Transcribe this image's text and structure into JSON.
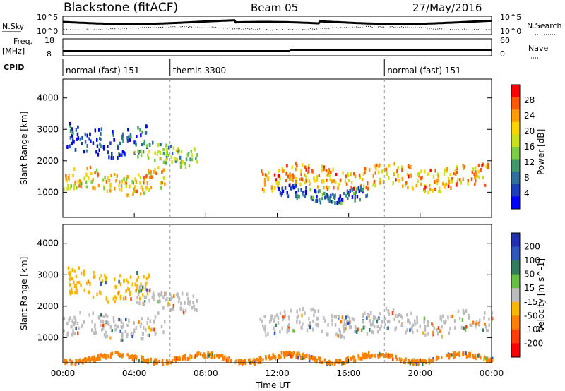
{
  "header": {
    "radar": "Blackstone (fitACF)",
    "beam": "Beam 05",
    "date": "27/May/2016"
  },
  "top_panels": {
    "nsky_label": "N.Sky",
    "nsky_ticks": [
      "10^5",
      "10^0"
    ],
    "nsearch_label": "N.Search",
    "nsearch_ticks": [
      "10^5",
      "10^0"
    ],
    "freq_label": "Freq.",
    "freq_unit": "[MHz]",
    "freq_ticks": [
      "18",
      "8"
    ],
    "nave_label": "Nave",
    "nave_ticks": [
      "60",
      "0"
    ],
    "cpid_label": "CPID",
    "cpid_segments": [
      {
        "label": "normal (fast) 151",
        "start_hour": 0,
        "end_hour": 6
      },
      {
        "label": "themis 3300",
        "start_hour": 6,
        "end_hour": 18
      },
      {
        "label": "normal (fast) 151",
        "start_hour": 18,
        "end_hour": 24
      }
    ]
  },
  "x_axis": {
    "label": "Time UT",
    "ticks": [
      "00:00",
      "04:00",
      "08:00",
      "12:00",
      "16:00",
      "20:00",
      "00:00"
    ]
  },
  "power_colorbar": {
    "label": "Power [dB]",
    "ticks": [
      "28",
      "24",
      "20",
      "16",
      "12",
      "8",
      "4"
    ],
    "colors": [
      "#ff0000",
      "#ff5a00",
      "#ff9a00",
      "#ffd200",
      "#c8e020",
      "#7ccf3c",
      "#3f9c6a",
      "#2c6fa0",
      "#1a3fb8",
      "#0000ff"
    ]
  },
  "velocity_colorbar": {
    "label": "Velocity [m s^-1]",
    "ticks": [
      "200",
      "100",
      "50",
      "15",
      "-15",
      "-50",
      "-100",
      "-200"
    ],
    "colors": [
      "#2030b0",
      "#2d57c0",
      "#2f7d5a",
      "#64c040",
      "#bdbdbd",
      "#ffb400",
      "#ff8000",
      "#ff4000",
      "#ff0000"
    ]
  },
  "chart_data": [
    {
      "type": "heatmap",
      "title": "Power",
      "xlabel": "Time UT",
      "ylabel": "Slant Range [km]",
      "xlim_hours": [
        0,
        24
      ],
      "ylim": [
        200,
        4600
      ],
      "yticks": [
        1000,
        2000,
        3000,
        4000
      ],
      "colorbar_label": "Power [dB]",
      "colorbar_ticks": [
        4,
        8,
        12,
        16,
        20,
        24,
        28
      ],
      "echo_bands": [
        {
          "from_hour": 0.0,
          "to_hour": 5.7,
          "range_km": [
            1000,
            1700
          ],
          "approx_power_db": 20
        },
        {
          "from_hour": 0.2,
          "to_hour": 4.8,
          "range_km": [
            2200,
            3100
          ],
          "approx_power_db": 6
        },
        {
          "from_hour": 4.0,
          "to_hour": 7.5,
          "range_km": [
            1900,
            2500
          ],
          "approx_power_db": 14
        },
        {
          "from_hour": 11.0,
          "to_hour": 24.0,
          "range_km": [
            1100,
            1800
          ],
          "approx_power_db": 22
        },
        {
          "from_hour": 12.0,
          "to_hour": 17.0,
          "range_km": [
            700,
            1100
          ],
          "approx_power_db": 8
        }
      ]
    },
    {
      "type": "heatmap",
      "title": "Velocity",
      "xlabel": "Time UT",
      "ylabel": "Slant Range [km]",
      "xlim_hours": [
        0,
        24
      ],
      "ylim": [
        200,
        4600
      ],
      "yticks": [
        1000,
        2000,
        3000,
        4000
      ],
      "colorbar_label": "Velocity [m s^-1]",
      "colorbar_ticks": [
        -200,
        -100,
        -50,
        -15,
        15,
        50,
        100,
        200
      ],
      "echo_bands": [
        {
          "from_hour": 0.0,
          "to_hour": 5.7,
          "range_km": [
            1000,
            1700
          ],
          "approx_velocity": 0
        },
        {
          "from_hour": 0.2,
          "to_hour": 4.8,
          "range_km": [
            2200,
            3100
          ],
          "approx_velocity": -50
        },
        {
          "from_hour": 4.0,
          "to_hour": 7.5,
          "range_km": [
            1900,
            2500
          ],
          "approx_velocity": 0
        },
        {
          "from_hour": 11.0,
          "to_hour": 24.0,
          "range_km": [
            1100,
            1800
          ],
          "approx_velocity": 0
        },
        {
          "from_hour": 0.0,
          "to_hour": 24.0,
          "range_km": [
            250,
            400
          ],
          "approx_velocity": -100
        }
      ]
    }
  ]
}
